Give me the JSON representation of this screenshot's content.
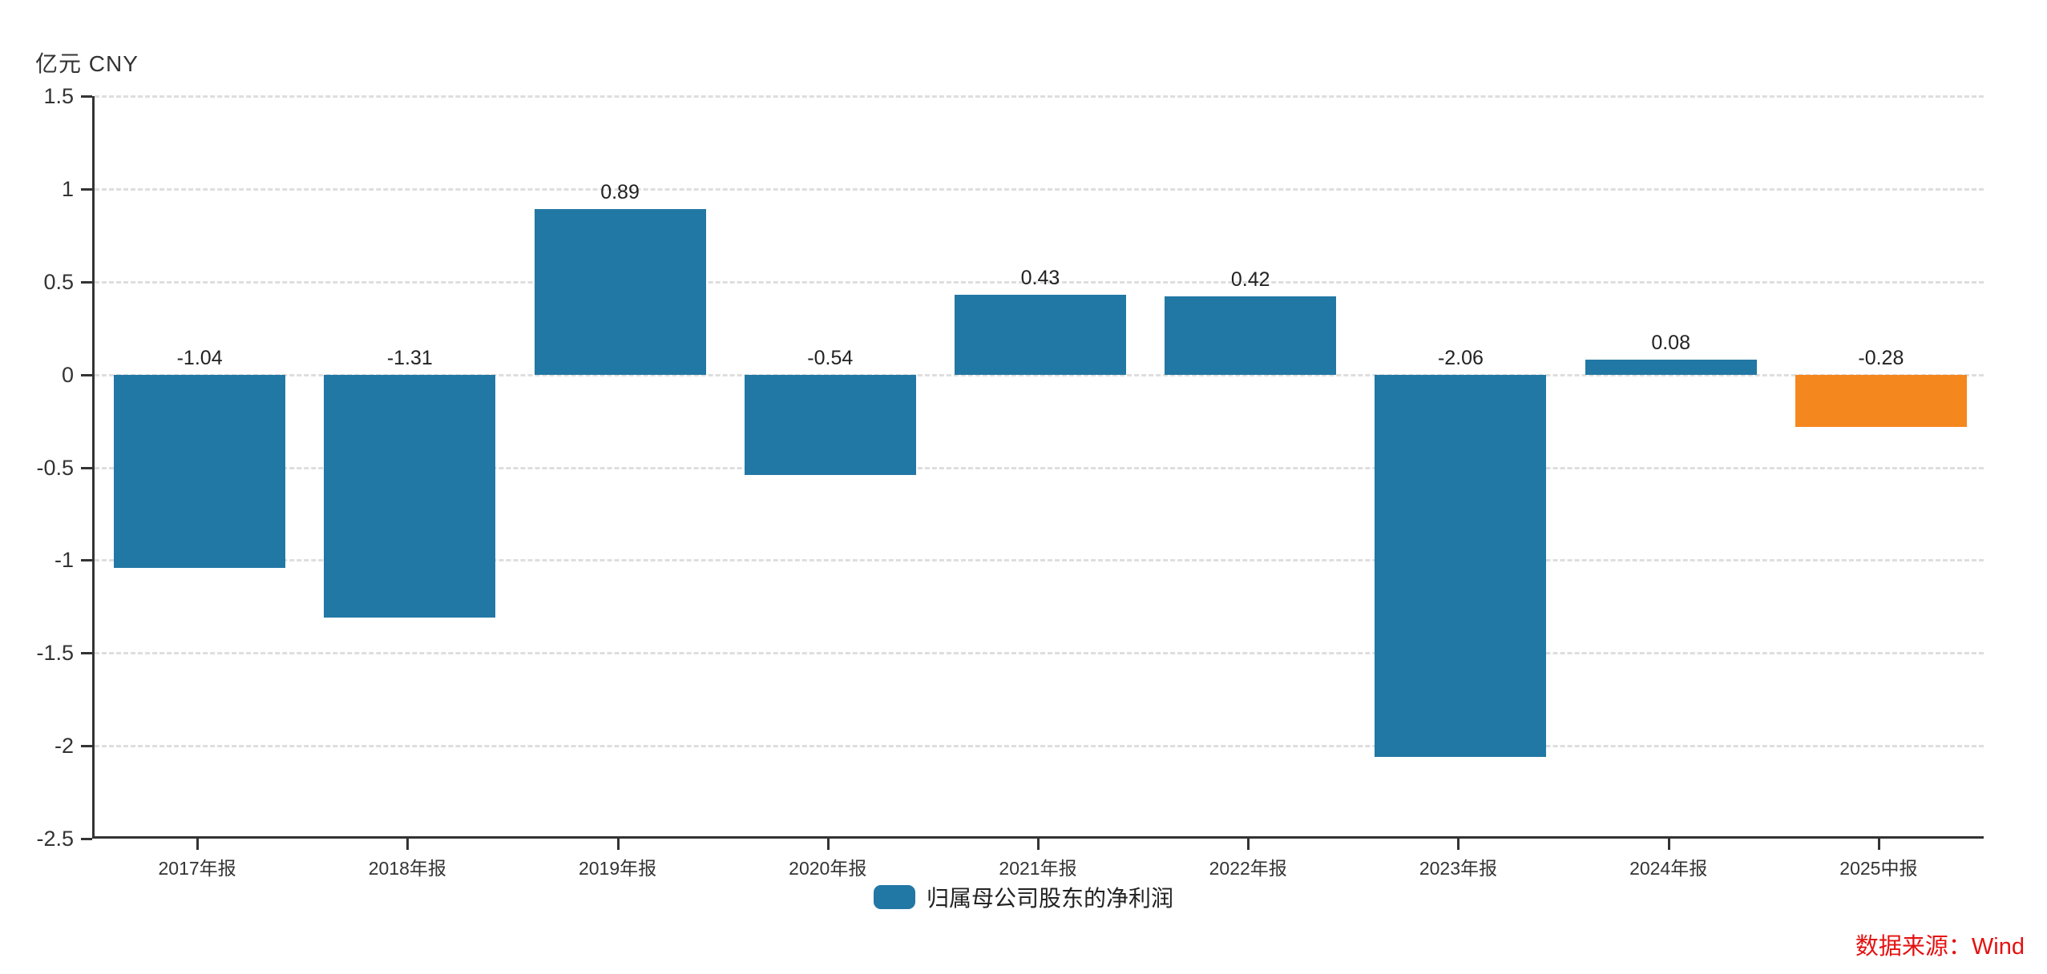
{
  "header": {
    "unit_label": "亿元  CNY"
  },
  "legend": {
    "items": [
      {
        "label": "归属母公司股东的净利润",
        "color": "#2278A5"
      }
    ]
  },
  "source": {
    "text": "数据来源：Wind",
    "color": "#E41111"
  },
  "colors": {
    "bar_default": "#2278A5",
    "bar_highlight": "#F5871F",
    "axis": "#333333",
    "gridline": "#DEDEDE",
    "value_label": "#222222"
  },
  "chart_data": {
    "type": "bar",
    "title": "",
    "series_name": "归属母公司股东的净利润",
    "categories": [
      "2017年报",
      "2018年报",
      "2019年报",
      "2020年报",
      "2021年报",
      "2022年报",
      "2023年报",
      "2024年报",
      "2025中报"
    ],
    "values": [
      -1.04,
      -1.31,
      0.89,
      -0.54,
      0.43,
      0.42,
      -2.06,
      0.08,
      -0.28
    ],
    "data_labels": [
      "-1.04",
      "-1.31",
      "0.89",
      "-0.54",
      "0.43",
      "0.42",
      "-2.06",
      "0.08",
      "-0.28"
    ],
    "bar_colors": [
      "#2278A5",
      "#2278A5",
      "#2278A5",
      "#2278A5",
      "#2278A5",
      "#2278A5",
      "#2278A5",
      "#2278A5",
      "#F5871F"
    ],
    "xlabel": "",
    "ylabel": "亿元  CNY",
    "ylim": [
      -2.5,
      1.5
    ],
    "ytick_labels": [
      "1.5",
      "1",
      "0.5",
      "0",
      "-0.5",
      "-1",
      "-1.5",
      "-2",
      "-2.5"
    ],
    "ytick_values": [
      1.5,
      1,
      0.5,
      0,
      -0.5,
      -1,
      -1.5,
      -2,
      -2.5
    ],
    "grid": "horizontal-dashed",
    "legend_position": "bottom-center"
  }
}
